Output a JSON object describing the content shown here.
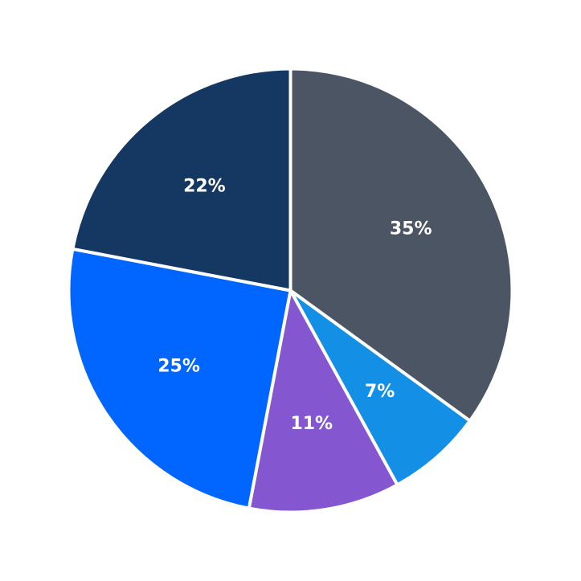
{
  "chart_data": {
    "type": "pie",
    "start_angle": "12 o'clock",
    "direction": "clockwise",
    "title": "",
    "legend": "none",
    "slices": [
      {
        "value": 35,
        "label": "35%",
        "color": "#4b5563"
      },
      {
        "value": 7,
        "label": "7%",
        "color": "#1390e6"
      },
      {
        "value": 11,
        "label": "11%",
        "color": "#8456cf"
      },
      {
        "value": 25,
        "label": "25%",
        "color": "#0066ff"
      },
      {
        "value": 22,
        "label": "22%",
        "color": "#143861"
      }
    ]
  }
}
